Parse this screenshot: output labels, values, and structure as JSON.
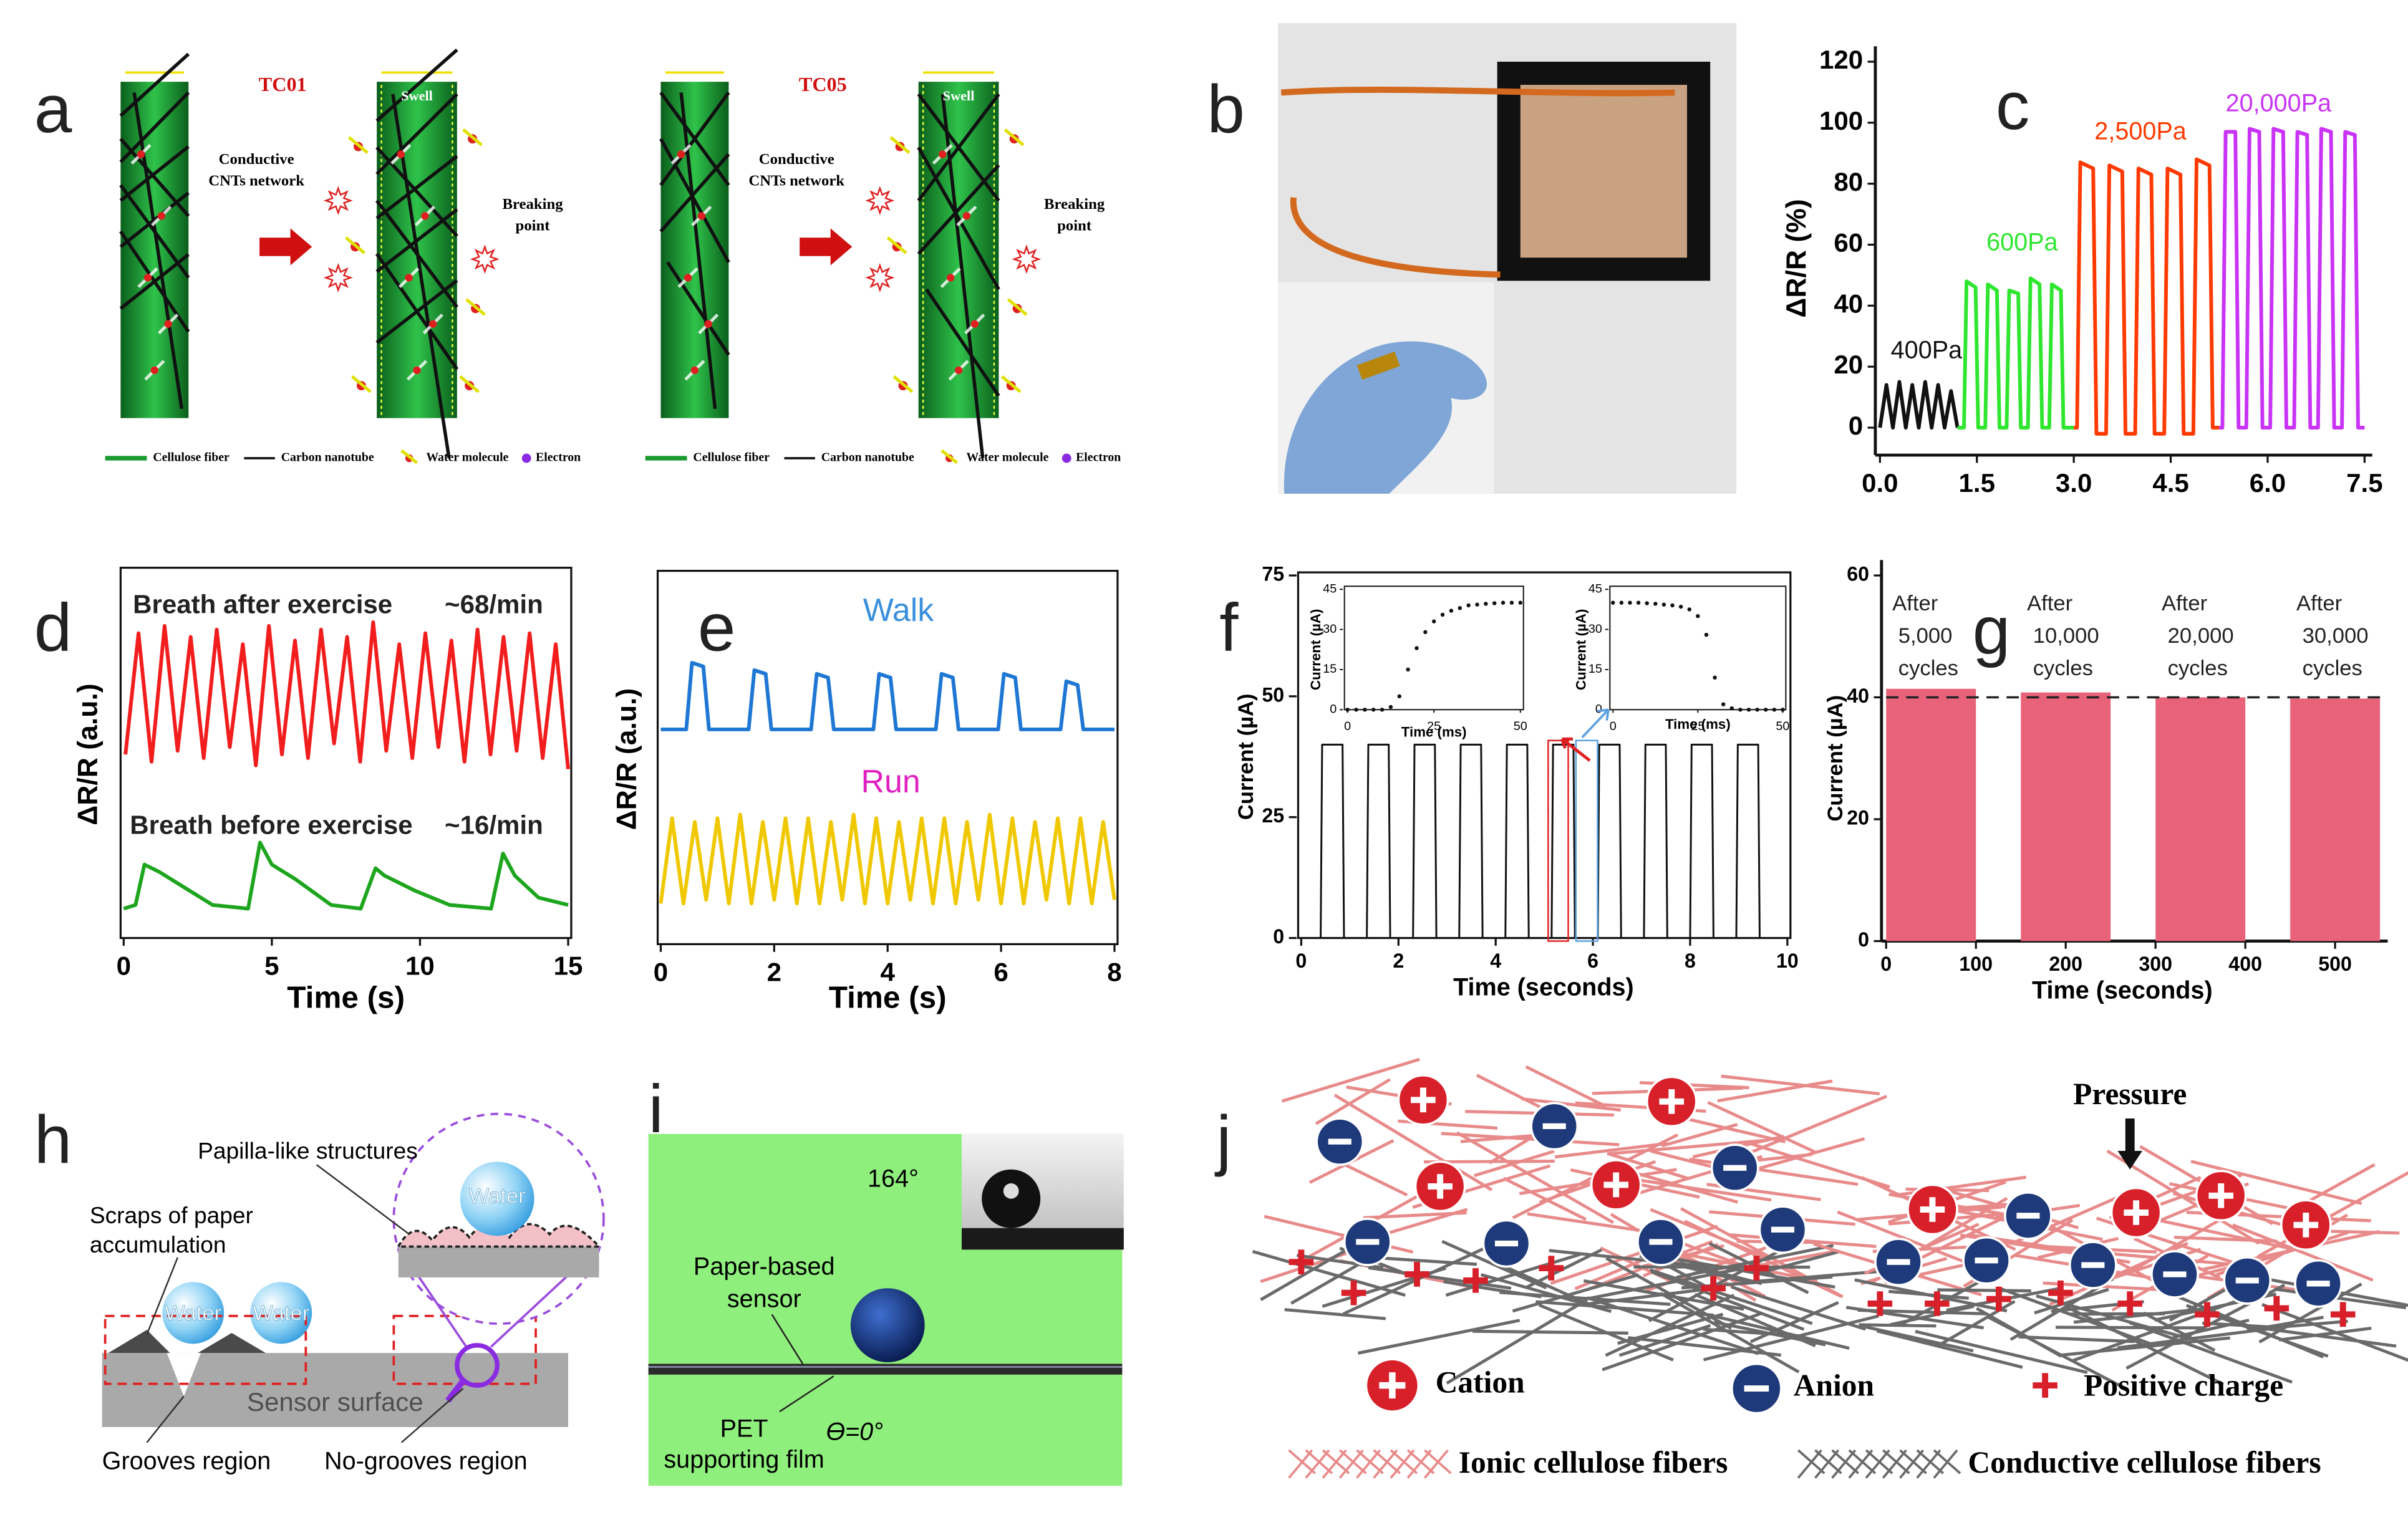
{
  "panels": {
    "a": {
      "label": "a",
      "left_title": "TC01",
      "right_title": "TC05",
      "network_label": [
        "Conductive",
        "CNTs network"
      ],
      "swell_label": "Swell",
      "breaking_label": [
        "Breaking",
        "point"
      ],
      "legend": [
        "Cellulose fiber",
        "Carbon nanotube",
        "Water molecule",
        "Electron"
      ]
    },
    "b": {
      "label": "b"
    },
    "h": {
      "label": "h",
      "papilla": "Papilla-like structures",
      "scraps": [
        "Scraps of paper",
        "accumulation"
      ],
      "water": "Water",
      "surface": "Sensor surface",
      "grooves": "Grooves region",
      "no_grooves": "No-grooves region"
    },
    "i": {
      "label": "i",
      "angle_top": "164°",
      "sensor": [
        "Paper-based",
        "sensor"
      ],
      "film": [
        "PET",
        "supporting film"
      ],
      "angle_bottom": "ϴ=0°"
    },
    "j": {
      "label": "j",
      "pressure": "Pressure",
      "cation": "Cation",
      "anion": "Anion",
      "positive": "Positive charge",
      "ionic": "Ionic cellulose fibers",
      "conductive": "Conductive cellulose fibers"
    }
  },
  "chart_data": [
    {
      "type": "line",
      "panel_label": "c",
      "ylabel": "ΔR/R (%)",
      "xlim": [
        0,
        7.5
      ],
      "ylim": [
        -9,
        120
      ],
      "xticks": [
        {
          "value": 0,
          "label": "0.0"
        },
        1.5,
        {
          "value": 3,
          "label": "3.0"
        },
        4.5,
        {
          "value": 6,
          "label": "6.0"
        },
        7.5
      ],
      "yticks": [
        0,
        20,
        40,
        60,
        80,
        100,
        120
      ],
      "series": [
        {
          "name": "400Pa",
          "color": "#111111",
          "x": [
            0,
            0.1,
            0.2,
            0.3,
            0.4,
            0.5,
            0.6,
            0.7,
            0.8,
            0.9,
            1.0,
            1.1,
            1.2
          ],
          "values": [
            0,
            14,
            0,
            15,
            0,
            14,
            0,
            15,
            0,
            14,
            0,
            12,
            0
          ]
        },
        {
          "name": "600Pa",
          "color": "#2ee62e",
          "x": [
            1.2,
            1.3,
            1.34,
            1.48,
            1.52,
            1.63,
            1.67,
            1.81,
            1.85,
            1.96,
            2.0,
            2.14,
            2.18,
            2.29,
            2.33,
            2.47,
            2.51,
            2.62,
            2.66,
            2.8,
            2.84,
            3.0
          ],
          "values": [
            0,
            0,
            48,
            46,
            0,
            0,
            47,
            45,
            0,
            0,
            45,
            44,
            0,
            0,
            49,
            47,
            0,
            0,
            47,
            45,
            0,
            0
          ]
        },
        {
          "name": "2,500Pa",
          "color": "#ff3a00",
          "x": [
            3.0,
            3.05,
            3.1,
            3.3,
            3.35,
            3.5,
            3.55,
            3.75,
            3.8,
            3.95,
            4.0,
            4.2,
            4.25,
            4.4,
            4.45,
            4.65,
            4.7,
            4.85,
            4.9,
            5.1,
            5.15,
            5.25
          ],
          "values": [
            0,
            0,
            87,
            85,
            -2,
            -2,
            86,
            84,
            -2,
            -2,
            85,
            83,
            -2,
            -2,
            85,
            83,
            -2,
            -2,
            88,
            86,
            0,
            0
          ]
        },
        {
          "name": "20,000Pa",
          "color": "#c933f5",
          "x": [
            5.25,
            5.3,
            5.35,
            5.5,
            5.55,
            5.67,
            5.72,
            5.87,
            5.92,
            6.04,
            6.09,
            6.24,
            6.29,
            6.41,
            6.46,
            6.61,
            6.66,
            6.78,
            6.83,
            6.98,
            7.03,
            7.15,
            7.2,
            7.35,
            7.4,
            7.5
          ],
          "values": [
            0,
            0,
            97,
            97,
            0,
            0,
            98,
            97,
            0,
            0,
            98,
            97,
            0,
            0,
            97,
            96,
            0,
            0,
            98,
            97,
            0,
            0,
            97,
            96,
            0,
            0
          ]
        }
      ]
    },
    {
      "type": "line",
      "panel_label": "d",
      "xlabel": "Time (s)",
      "ylabel": "ΔR/R (a.u.)",
      "xlim": [
        0,
        15
      ],
      "ylim": [
        0,
        10
      ],
      "xticks": [
        0,
        5,
        10,
        15
      ],
      "series": [
        {
          "name": "Breath after exercise",
          "rate": "~68/min",
          "color": "#f21d1d",
          "x": [
            0.06,
            0.5,
            0.94,
            1.38,
            1.82,
            2.26,
            2.7,
            3.14,
            3.58,
            4.02,
            4.46,
            4.9,
            5.34,
            5.78,
            6.22,
            6.66,
            7.1,
            7.54,
            7.98,
            8.42,
            8.86,
            9.3,
            9.74,
            10.18,
            10.62,
            11.06,
            11.5,
            11.94,
            12.38,
            12.82,
            13.26,
            13.7,
            14.14,
            14.58,
            15.0
          ],
          "values": [
            5.0,
            8.3,
            4.8,
            8.5,
            5.1,
            8.2,
            4.9,
            8.4,
            5.2,
            8.0,
            4.7,
            8.5,
            5.0,
            8.1,
            4.9,
            8.4,
            5.3,
            8.2,
            4.8,
            8.6,
            5.1,
            8.0,
            4.9,
            8.3,
            5.2,
            8.1,
            4.8,
            8.4,
            5.0,
            8.2,
            5.1,
            8.3,
            4.9,
            8.0,
            4.6
          ]
        },
        {
          "name": "Breath before exercise",
          "rate": "~16/min",
          "color": "#1ea51e",
          "x": [
            0,
            0.4,
            0.7,
            1.2,
            2.0,
            3.0,
            4.2,
            4.6,
            5.0,
            5.8,
            7.0,
            8.0,
            8.5,
            8.8,
            9.8,
            11.0,
            12.4,
            12.8,
            13.2,
            14.0,
            15.0
          ],
          "values": [
            0.8,
            0.9,
            2.0,
            1.8,
            1.4,
            0.9,
            0.8,
            2.6,
            2.0,
            1.6,
            0.9,
            0.8,
            1.9,
            1.7,
            1.3,
            0.9,
            0.8,
            2.3,
            1.7,
            1.1,
            0.9
          ]
        }
      ]
    },
    {
      "type": "line",
      "panel_label": "e",
      "xlabel": "Time (s)",
      "ylabel": "ΔR/R (a.u.)",
      "xlim": [
        0,
        8
      ],
      "ylim": [
        0,
        10
      ],
      "xticks": [
        0,
        2,
        4,
        6,
        8
      ],
      "series": [
        {
          "name": "Walk",
          "label_color": "#3a8fdc",
          "color": "#1f77d4",
          "x": [
            0,
            0.45,
            0.55,
            0.75,
            0.85,
            1.55,
            1.65,
            1.85,
            1.95,
            2.65,
            2.75,
            2.95,
            3.05,
            3.75,
            3.85,
            4.05,
            4.15,
            4.85,
            4.95,
            5.15,
            5.25,
            5.95,
            6.05,
            6.25,
            6.35,
            7.05,
            7.15,
            7.35,
            7.45,
            8.0
          ],
          "values": [
            5.8,
            5.8,
            7.6,
            7.5,
            5.8,
            5.8,
            7.4,
            7.3,
            5.8,
            5.8,
            7.3,
            7.2,
            5.8,
            5.8,
            7.3,
            7.2,
            5.8,
            5.8,
            7.3,
            7.2,
            5.8,
            5.8,
            7.3,
            7.2,
            5.8,
            5.8,
            7.1,
            7.0,
            5.8,
            5.8
          ]
        },
        {
          "name": "Run",
          "label_color": "#e020c0",
          "color": "#f0c800",
          "x": [
            0,
            0.2,
            0.4,
            0.6,
            0.8,
            1,
            1.2,
            1.4,
            1.6,
            1.8,
            2,
            2.2,
            2.4,
            2.6,
            2.8,
            3,
            3.2,
            3.4,
            3.6,
            3.8,
            4,
            4.2,
            4.4,
            4.6,
            4.8,
            5,
            5.2,
            5.4,
            5.6,
            5.8,
            6,
            6.2,
            6.4,
            6.6,
            6.8,
            7,
            7.2,
            7.4,
            7.6,
            7.8,
            8
          ],
          "values": [
            1.1,
            3.4,
            1.1,
            3.3,
            1.2,
            3.4,
            1.1,
            3.5,
            1.1,
            3.3,
            1.2,
            3.4,
            1.1,
            3.4,
            1.1,
            3.3,
            1.2,
            3.5,
            1.1,
            3.4,
            1.1,
            3.3,
            1.2,
            3.4,
            1.1,
            3.4,
            1.1,
            3.3,
            1.2,
            3.5,
            1.1,
            3.4,
            1.1,
            3.3,
            1.2,
            3.4,
            1.1,
            3.4,
            1.1,
            3.3,
            1.2
          ]
        }
      ]
    },
    {
      "type": "line",
      "panel_label": "f",
      "xlabel": "Time (seconds)",
      "ylabel": "Current (µA)",
      "xlim": [
        0,
        10
      ],
      "ylim": [
        0,
        75
      ],
      "xticks": [
        0,
        2,
        4,
        6,
        8,
        10
      ],
      "yticks": [
        0,
        25,
        50,
        75
      ],
      "series": [
        {
          "color": "#111111",
          "x": [
            0,
            0.4,
            0.43,
            0.85,
            0.88,
            1.35,
            1.38,
            1.8,
            1.83,
            2.3,
            2.33,
            2.75,
            2.78,
            3.25,
            3.28,
            3.7,
            3.73,
            4.2,
            4.23,
            4.65,
            4.68,
            5.15,
            5.18,
            5.6,
            5.63,
            6.1,
            6.13,
            6.55,
            6.58,
            7.05,
            7.08,
            7.5,
            7.53,
            8,
            8.03,
            8.45,
            8.48,
            8.95,
            8.98,
            9.4,
            9.43,
            10
          ],
          "values": [
            0,
            0,
            40,
            40,
            0,
            0,
            40,
            40,
            0,
            0,
            40,
            40,
            0,
            0,
            40,
            40,
            0,
            0,
            40,
            40,
            0,
            0,
            40,
            40,
            0,
            0,
            40,
            40,
            0,
            0,
            40,
            40,
            0,
            0,
            40,
            40,
            0,
            0,
            40,
            40,
            0,
            0
          ]
        }
      ]
    },
    {
      "type": "scatter",
      "xlabel": "Time (ms)",
      "ylabel": "Current (µA)",
      "xlim": [
        0,
        50
      ],
      "ylim": [
        0,
        45
      ],
      "xticks": [
        0,
        25,
        50
      ],
      "yticks": [
        0,
        15,
        30,
        45
      ],
      "color": "#111111",
      "x": [
        0,
        2.5,
        5,
        7.5,
        10,
        12.5,
        15,
        17.5,
        20,
        22.5,
        25,
        27.5,
        30,
        32.5,
        35,
        37.5,
        40,
        42.5,
        45,
        47.5,
        50
      ],
      "values": [
        0,
        0,
        0,
        0,
        0,
        1,
        5,
        15,
        23,
        29,
        33,
        35.5,
        37,
        38,
        39,
        39.3,
        39.6,
        39.8,
        40,
        40,
        40
      ]
    },
    {
      "type": "scatter",
      "xlabel": "Time (ms)",
      "ylabel": "Current (µA)",
      "xlim": [
        0,
        50
      ],
      "ylim": [
        0,
        45
      ],
      "xticks": [
        0,
        25,
        50
      ],
      "yticks": [
        0,
        15,
        30,
        45
      ],
      "color": "#111111",
      "x": [
        0,
        2.5,
        5,
        7.5,
        10,
        12.5,
        15,
        17.5,
        20,
        22.5,
        25,
        27.5,
        30,
        32.5,
        35,
        37.5,
        40,
        42.5,
        45,
        47.5,
        50
      ],
      "values": [
        40,
        40,
        40,
        40,
        39.8,
        39.6,
        39.3,
        39,
        38.5,
        37.5,
        35,
        28,
        12,
        2,
        0.5,
        0,
        0,
        0,
        0,
        0,
        0
      ]
    },
    {
      "type": "bar",
      "panel_label": "g",
      "xlabel": "Time (seconds)",
      "ylabel": "Current (µA)",
      "xlim": [
        0,
        550
      ],
      "ylim": [
        0,
        60
      ],
      "xticks": [
        0,
        100,
        200,
        300,
        400,
        500
      ],
      "yticks": [
        0,
        20,
        40,
        60
      ],
      "categories": [
        "After 5,000 cycles",
        "After 10,000 cycles",
        "After 20,000 cycles",
        "After 30,000 cycles"
      ],
      "x_ranges": [
        [
          0,
          100
        ],
        [
          150,
          250
        ],
        [
          300,
          400
        ],
        [
          450,
          550
        ]
      ],
      "values": [
        41.4,
        40.8,
        40.0,
        39.8
      ],
      "color": "#e8637a",
      "reference_line": 40
    }
  ]
}
